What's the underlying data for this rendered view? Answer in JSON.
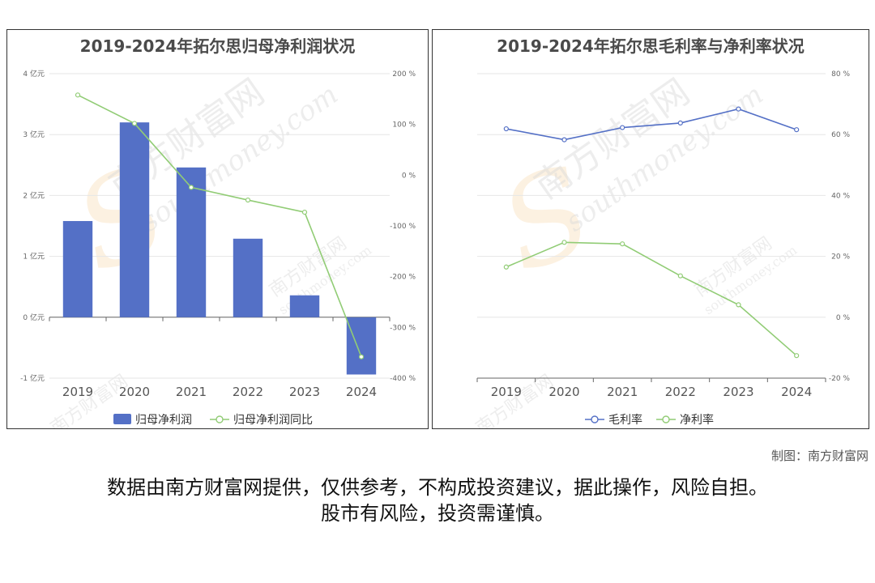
{
  "footer": {
    "credit": "制图：南方财富网",
    "disclaimer_line1": "数据由南方财富网提供，仅供参考，不构成投资建议，据此操作，风险自担。",
    "disclaimer_line2": "股市有风险，投资需谨慎。"
  },
  "watermark": {
    "cn": "南方财富网",
    "en": "southmoney.com"
  },
  "colors": {
    "bar": "#5470c6",
    "line_green": "#91cc75",
    "line_blue": "#5470c6",
    "grid": "#e6e6e6",
    "axis_text": "#666666"
  },
  "chart_data": [
    {
      "type": "bar",
      "title": "2019-2024年拓尔思归母净利润状况",
      "categories": [
        "2019",
        "2020",
        "2021",
        "2022",
        "2023",
        "2024"
      ],
      "left_axis": {
        "min": -1,
        "max": 4,
        "step": 1,
        "unit": "亿元"
      },
      "right_axis": {
        "min": -400,
        "max": 200,
        "step": 100,
        "unit": "%"
      },
      "series": [
        {
          "name": "归母净利润",
          "type": "bar",
          "axis": "left",
          "color": "#5470c6",
          "values": [
            1.58,
            3.2,
            2.46,
            1.29,
            0.36,
            -0.94
          ]
        },
        {
          "name": "归母净利润同比",
          "type": "line",
          "axis": "right",
          "color": "#91cc75",
          "values": [
            158,
            102,
            -24,
            -49,
            -73,
            -358
          ]
        }
      ],
      "legend_position": "bottom"
    },
    {
      "type": "line",
      "title": "2019-2024年拓尔思毛利率与净利率状况",
      "categories": [
        "2019",
        "2020",
        "2021",
        "2022",
        "2023",
        "2024"
      ],
      "right_axis": {
        "min": -20,
        "max": 80,
        "step": 20,
        "unit": "%"
      },
      "series": [
        {
          "name": "毛利率",
          "color": "#5470c6",
          "values": [
            61.9,
            58.3,
            62.3,
            63.8,
            68.4,
            61.6
          ]
        },
        {
          "name": "净利率",
          "color": "#91cc75",
          "values": [
            16.5,
            24.6,
            24.1,
            13.6,
            4.1,
            -12.6
          ]
        }
      ],
      "legend_position": "bottom"
    }
  ]
}
